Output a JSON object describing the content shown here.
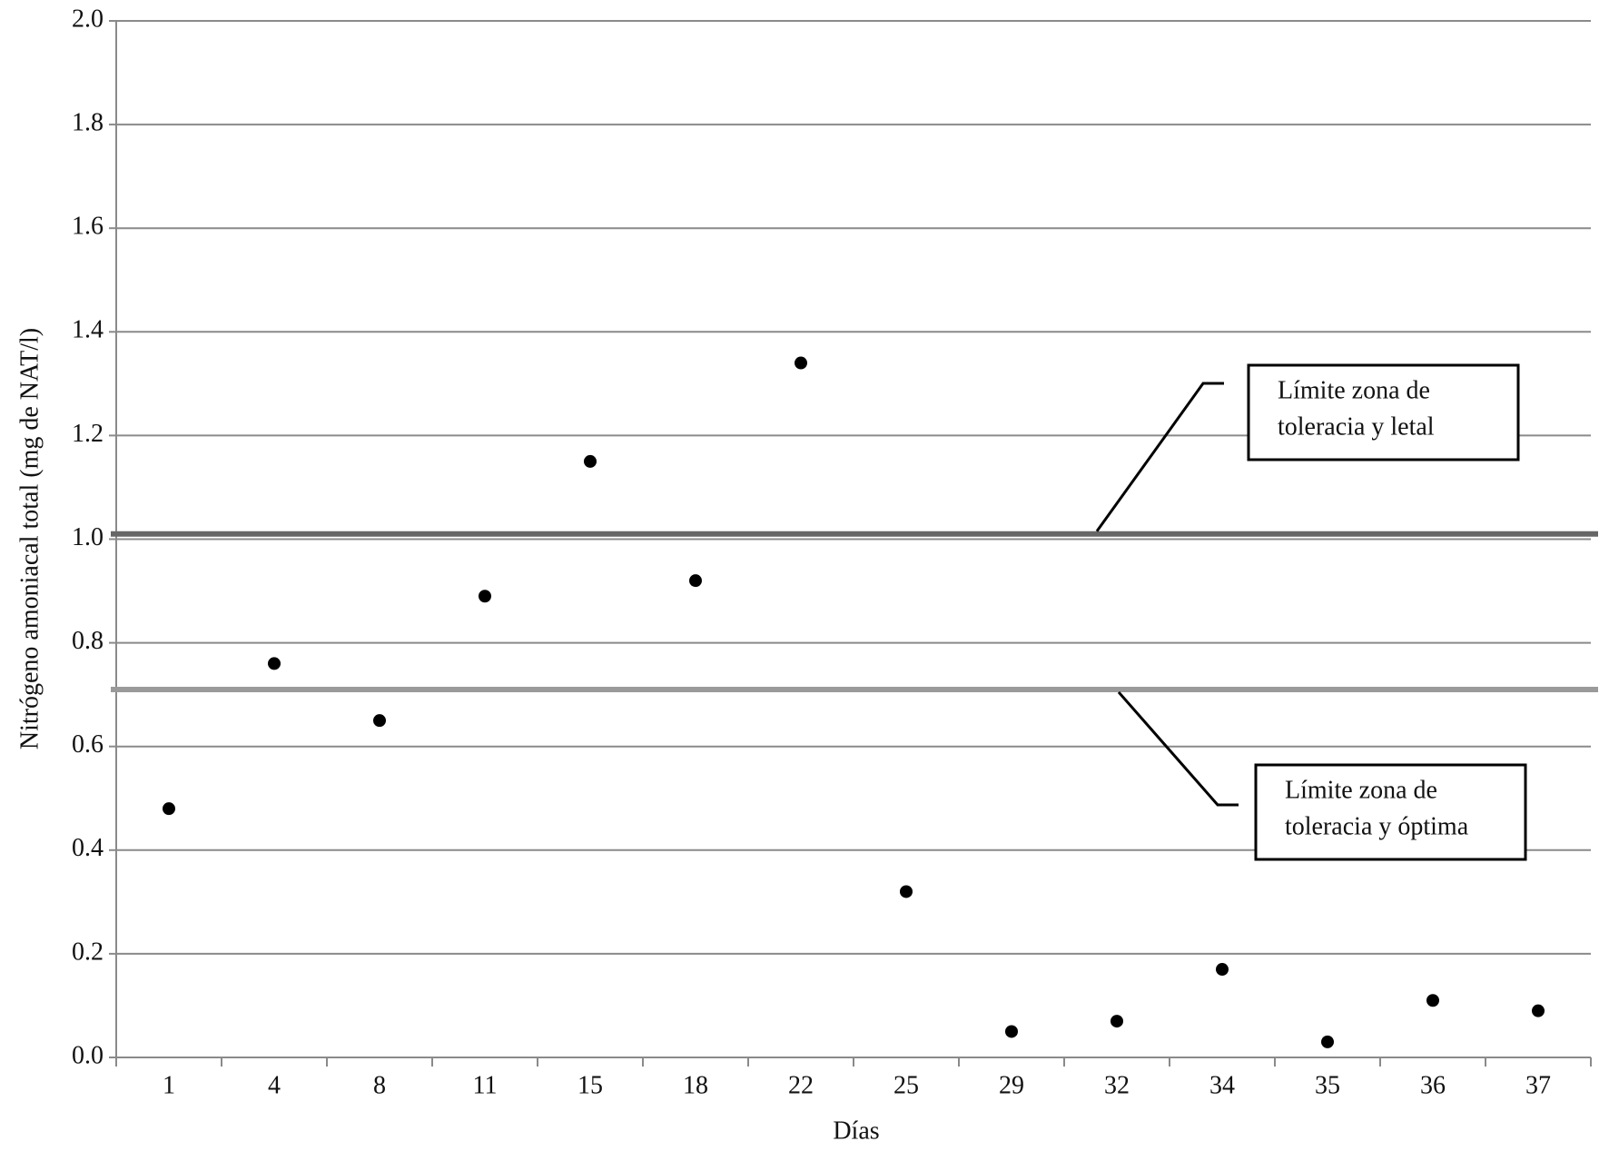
{
  "chart_data": {
    "type": "scatter",
    "xlabel": "Días",
    "ylabel": "Nitrógeno amoniacal total (mg de NAT/l)",
    "categories": [
      "1",
      "4",
      "8",
      "11",
      "15",
      "18",
      "22",
      "25",
      "29",
      "32",
      "34",
      "35",
      "36",
      "37"
    ],
    "values": [
      0.48,
      0.76,
      0.65,
      0.89,
      1.15,
      0.92,
      1.34,
      0.32,
      0.05,
      0.07,
      0.17,
      0.03,
      0.11,
      0.09
    ],
    "color": "#000000",
    "ylim": [
      0,
      2.0
    ],
    "yticks": [
      {
        "value": 0,
        "label": "0.0"
      },
      0.2,
      0.4,
      0.6,
      0.8,
      {
        "value": 1,
        "label": "1.0"
      },
      1.2,
      1.4,
      1.6,
      1.8,
      {
        "value": 2,
        "label": "2.0"
      }
    ],
    "grid": true,
    "reference_lines": [
      {
        "value": 1.01,
        "color": "#666666",
        "label_lines": [
          "Límite zona de",
          "toleracia y letal"
        ]
      },
      {
        "value": 0.71,
        "color": "#9a9a9a",
        "label_lines": [
          "Límite zona de",
          "toleracia y óptima"
        ]
      }
    ]
  }
}
